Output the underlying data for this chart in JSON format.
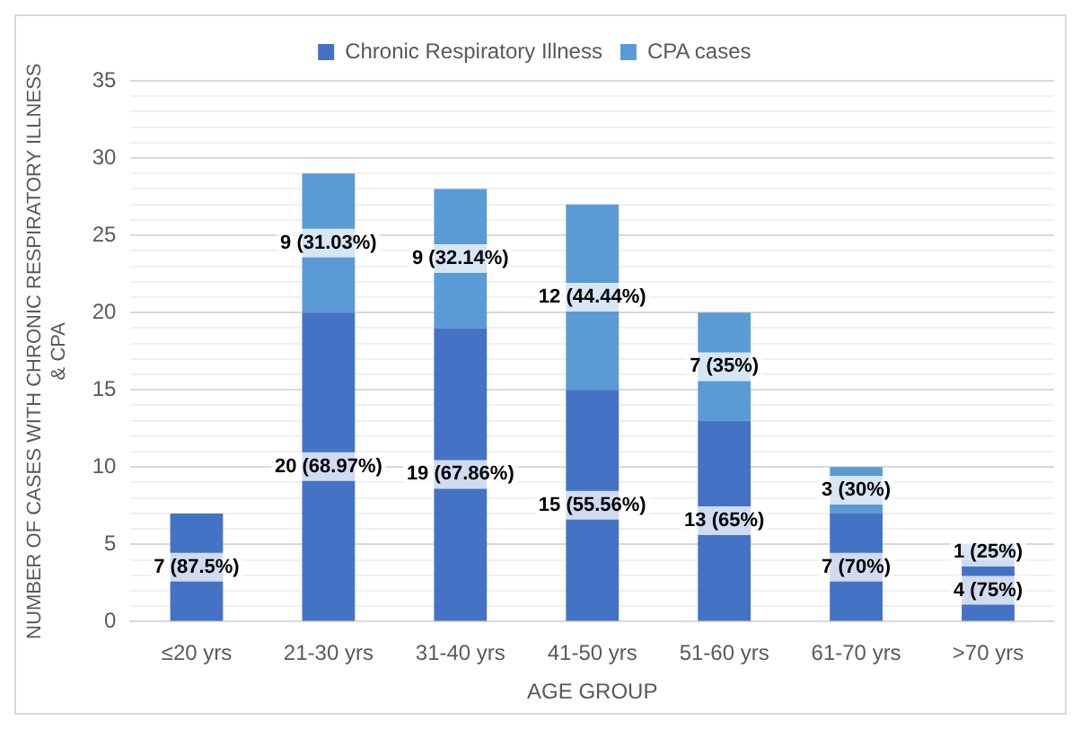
{
  "chart_data": {
    "type": "bar",
    "stacked": true,
    "xlabel": "AGE GROUP",
    "ylabel": "NUMBER OF CASES WITH CHRONIC RESPIRATORY ILLNESS & CPA",
    "categories": [
      "≤20 yrs",
      "21-30 yrs",
      "31-40 yrs",
      "41-50 yrs",
      "51-60 yrs",
      "61-70 yrs",
      ">70 yrs"
    ],
    "series": [
      {
        "name": "Chronic Respiratory Illness",
        "color": "#4472c4",
        "values": [
          7,
          20,
          19,
          15,
          13,
          7,
          4
        ],
        "value_labels": [
          "7 (87.5%)",
          "20 (68.97%)",
          "19 (67.86%)",
          "15 (55.56%)",
          "13 (65%)",
          "7 (70%)",
          "4 (75%)"
        ]
      },
      {
        "name": "CPA cases",
        "color": "#5b9bd5",
        "values": [
          null,
          9,
          9,
          12,
          7,
          3,
          1
        ],
        "value_labels": [
          null,
          "9 (31.03%)",
          "9 (32.14%)",
          "12 (44.44%)",
          "7 (35%)",
          "3 (30%)",
          "1 (25%)"
        ]
      }
    ],
    "ylim": [
      0,
      35
    ],
    "yticks": [
      0,
      {
        "value": 1,
        "label": null
      },
      {
        "value": 2,
        "label": null
      },
      {
        "value": 3,
        "label": null
      },
      {
        "value": 4,
        "label": null
      },
      5,
      {
        "value": 6,
        "label": null
      },
      {
        "value": 7,
        "label": null
      },
      {
        "value": 8,
        "label": null
      },
      {
        "value": 9,
        "label": null
      },
      10,
      {
        "value": 11,
        "label": null
      },
      {
        "value": 12,
        "label": null
      },
      {
        "value": 13,
        "label": null
      },
      {
        "value": 14,
        "label": null
      },
      15,
      {
        "value": 16,
        "label": null
      },
      {
        "value": 17,
        "label": null
      },
      {
        "value": 18,
        "label": null
      },
      {
        "value": 19,
        "label": null
      },
      20,
      {
        "value": 21,
        "label": null
      },
      {
        "value": 22,
        "label": null
      },
      {
        "value": 23,
        "label": null
      },
      {
        "value": 24,
        "label": null
      },
      25,
      {
        "value": 26,
        "label": null
      },
      {
        "value": 27,
        "label": null
      },
      {
        "value": 28,
        "label": null
      },
      {
        "value": 29,
        "label": null
      },
      30,
      {
        "value": 31,
        "label": null
      },
      {
        "value": 32,
        "label": null
      },
      {
        "value": 33,
        "label": null
      },
      {
        "value": 34,
        "label": null
      },
      35
    ],
    "grid": "y",
    "legend": "top"
  }
}
